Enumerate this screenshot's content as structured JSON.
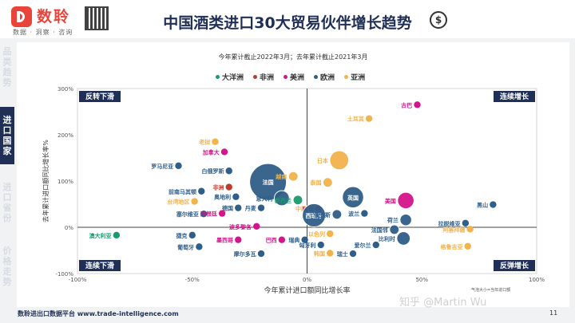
{
  "header": {
    "brand": "数聆",
    "tagline": "数据 · 洞察 · 咨询",
    "title": "中国酒类进口30大贸易伙伴增长趋势"
  },
  "nav": [
    {
      "label": "品类趋势",
      "active": false
    },
    {
      "label": "进口国家",
      "active": true
    },
    {
      "label": "进口省份",
      "active": false
    },
    {
      "label": "价格走势",
      "active": false
    }
  ],
  "subtitle": "今年累计截止2022年3月；去年累计截止2021年3月",
  "footer": {
    "platform": "数聆进出口数据平台 www.trade-intelligence.com",
    "page": "11"
  },
  "watermark": "知乎 @Martin Wu",
  "bubble_note": "气泡大小=当年进口额",
  "colors": {
    "大洋洲": "#1a9a6e",
    "非洲": "#c0392b",
    "美洲": "#d4148a",
    "欧洲": "#2f5e88",
    "亚洲": "#f2b24c"
  },
  "chart_data": {
    "type": "scatter",
    "xlabel": "今年累计进口额同比增长率",
    "ylabel": "去年累计进口额同比增长率%",
    "xlim": [
      -100,
      100
    ],
    "ylim": [
      -100,
      300
    ],
    "x_ticks": [
      "-100%",
      "-50%",
      "0%",
      "50%",
      "100%"
    ],
    "y_ticks": [
      "-100%",
      "0%",
      "100%",
      "200%",
      "300%"
    ],
    "grid": false,
    "legend": [
      "大洋洲",
      "非洲",
      "美洲",
      "欧洲",
      "亚洲"
    ],
    "legend_position": "top",
    "quadrants": {
      "top_left": "反转下滑",
      "top_right": "连续增长",
      "bottom_left": "连续下滑",
      "bottom_right": "反弹增长"
    },
    "points": [
      {
        "name": "古巴",
        "region": "美洲",
        "x": 48,
        "y": 265,
        "size": 1
      },
      {
        "name": "土耳其",
        "region": "亚洲",
        "x": 27,
        "y": 235,
        "size": 1
      },
      {
        "name": "日本",
        "region": "亚洲",
        "x": 14,
        "y": 145,
        "size": 8
      },
      {
        "name": "老挝",
        "region": "亚洲",
        "x": -40,
        "y": 185,
        "size": 1
      },
      {
        "name": "加拿大",
        "region": "美洲",
        "x": -36,
        "y": 163,
        "size": 1
      },
      {
        "name": "罗马尼亚",
        "region": "欧洲",
        "x": -56,
        "y": 133,
        "size": 1
      },
      {
        "name": "白俄罗斯",
        "region": "欧洲",
        "x": -34,
        "y": 122,
        "size": 1
      },
      {
        "name": "法国",
        "region": "欧洲",
        "x": -17,
        "y": 98,
        "size": 30
      },
      {
        "name": "越南",
        "region": "亚洲",
        "x": -6,
        "y": 110,
        "size": 2
      },
      {
        "name": "泰国",
        "region": "亚洲",
        "x": 9,
        "y": 97,
        "size": 2
      },
      {
        "name": "非洲",
        "region": "非洲",
        "x": -34,
        "y": 87,
        "size": 1
      },
      {
        "name": "前南马其顿",
        "region": "欧洲",
        "x": -46,
        "y": 78,
        "size": 1
      },
      {
        "name": "奥地利",
        "region": "欧洲",
        "x": -31,
        "y": 66,
        "size": 1
      },
      {
        "name": "意大利",
        "region": "欧洲",
        "x": -11,
        "y": 63,
        "size": 5
      },
      {
        "name": "新西兰",
        "region": "大洋洲",
        "x": -4,
        "y": 59,
        "size": 2
      },
      {
        "name": "英国",
        "region": "欧洲",
        "x": 20,
        "y": 65,
        "size": 10
      },
      {
        "name": "美国",
        "region": "美洲",
        "x": 43,
        "y": 58,
        "size": 6
      },
      {
        "name": "黑山",
        "region": "欧洲",
        "x": 81,
        "y": 49,
        "size": 1
      },
      {
        "name": "台湾地区",
        "region": "亚洲",
        "x": -49,
        "y": 56,
        "size": 1
      },
      {
        "name": "德国",
        "region": "欧洲",
        "x": -30,
        "y": 42,
        "size": 1
      },
      {
        "name": "丹麦",
        "region": "欧洲",
        "x": -20,
        "y": 42,
        "size": 1
      },
      {
        "name": "中国",
        "region": "亚洲",
        "x": 2,
        "y": 41,
        "size": 1
      },
      {
        "name": "智利",
        "region": "美洲",
        "x": 5,
        "y": 40,
        "size": 1
      },
      {
        "name": "西班牙",
        "region": "欧洲",
        "x": 3,
        "y": 26,
        "size": 12
      },
      {
        "name": "俄罗斯",
        "region": "欧洲",
        "x": 13,
        "y": 28,
        "size": 2
      },
      {
        "name": "波兰",
        "region": "欧洲",
        "x": 25,
        "y": 30,
        "size": 1
      },
      {
        "name": "塞尔维亚",
        "region": "欧洲",
        "x": -45,
        "y": 29,
        "size": 1
      },
      {
        "name": "阿根廷",
        "region": "美洲",
        "x": -37,
        "y": 30,
        "size": 1
      },
      {
        "name": "荷兰",
        "region": "欧洲",
        "x": 43,
        "y": 16,
        "size": 3
      },
      {
        "name": "拉脱维亚",
        "region": "欧洲",
        "x": 69,
        "y": 9,
        "size": 1
      },
      {
        "name": "阿塞拜疆",
        "region": "亚洲",
        "x": 71,
        "y": -4,
        "size": 1
      },
      {
        "name": "澳大利亚",
        "region": "大洋洲",
        "x": -83,
        "y": -17,
        "size": 1
      },
      {
        "name": "捷克",
        "region": "欧洲",
        "x": -50,
        "y": -17,
        "size": 1
      },
      {
        "name": "葡萄牙",
        "region": "欧洲",
        "x": -47,
        "y": -42,
        "size": 1
      },
      {
        "name": "墨西哥",
        "region": "美洲",
        "x": -30,
        "y": -27,
        "size": 1
      },
      {
        "name": "波多黎各",
        "region": "美洲",
        "x": -22,
        "y": 2,
        "size": 1
      },
      {
        "name": "巴西",
        "region": "美洲",
        "x": -11,
        "y": -27,
        "size": 1
      },
      {
        "name": "摩尔多瓦",
        "region": "欧洲",
        "x": -20,
        "y": -57,
        "size": 1
      },
      {
        "name": "瑞典",
        "region": "欧洲",
        "x": -1,
        "y": -27,
        "size": 1
      },
      {
        "name": "以色列",
        "region": "亚洲",
        "x": 10,
        "y": -14,
        "size": 1
      },
      {
        "name": "匈牙利",
        "region": "欧洲",
        "x": 6,
        "y": -38,
        "size": 1
      },
      {
        "name": "韩国",
        "region": "亚洲",
        "x": 10,
        "y": -56,
        "size": 1
      },
      {
        "name": "瑞士",
        "region": "欧洲",
        "x": 20,
        "y": -57,
        "size": 1
      },
      {
        "name": "爱尔兰",
        "region": "欧洲",
        "x": 30,
        "y": -38,
        "size": 1
      },
      {
        "name": "比利时",
        "region": "欧洲",
        "x": 42,
        "y": -24,
        "size": 4
      },
      {
        "name": "格鲁吉亚",
        "region": "亚洲",
        "x": 70,
        "y": -41,
        "size": 1
      },
      {
        "name": "法国邻",
        "region": "欧洲",
        "x": 38,
        "y": -5,
        "size": 2
      }
    ]
  }
}
